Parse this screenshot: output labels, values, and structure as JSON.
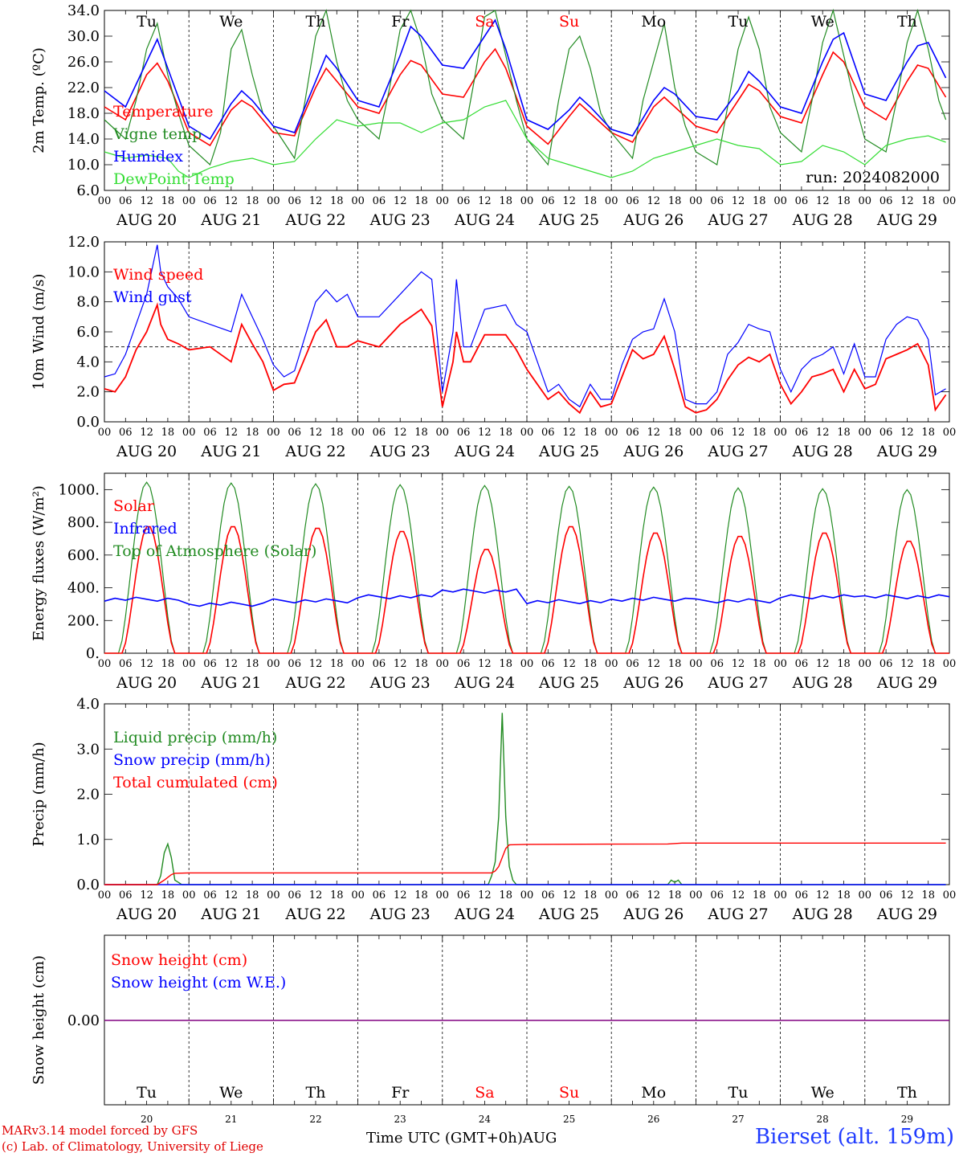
{
  "run_label": "run: 2024082000",
  "axis": {
    "hour_labels": [
      "00",
      "06",
      "12",
      "18"
    ],
    "end_hour_label": "00",
    "date_labels": [
      "AUG 20",
      "AUG 21",
      "AUG 22",
      "AUG 23",
      "AUG 24",
      "AUG 25",
      "AUG 26",
      "AUG 27",
      "AUG 28",
      "AUG 29"
    ],
    "weekdays": [
      {
        "label": "Tu",
        "color": "#000000"
      },
      {
        "label": "We",
        "color": "#000000"
      },
      {
        "label": "Th",
        "color": "#000000"
      },
      {
        "label": "Fr",
        "color": "#000000"
      },
      {
        "label": "Sa",
        "color": "#ff0000"
      },
      {
        "label": "Su",
        "color": "#ff0000"
      },
      {
        "label": "Mo",
        "color": "#000000"
      },
      {
        "label": "Tu",
        "color": "#000000"
      },
      {
        "label": "We",
        "color": "#000000"
      },
      {
        "label": "Th",
        "color": "#000000"
      }
    ],
    "day_numbers": [
      "20",
      "21",
      "22",
      "23",
      "24",
      "25",
      "26",
      "27",
      "28",
      "29"
    ]
  },
  "footer": {
    "model_line": "MARv3.14 model forced by GFS",
    "lab_line": "(c) Lab. of Climatology, University of Liege",
    "time_label": "Time UTC (GMT+0h)",
    "month_label": "AUG",
    "station": "Bierset (alt. 159m)"
  },
  "colors": {
    "red": "#ff0000",
    "green": "#228b22",
    "blue": "#0000ff",
    "lightgreen": "#33dd33",
    "purple": "#800080"
  },
  "chart_data": [
    {
      "type": "line",
      "ylabel": "2m Temp. (ºC)",
      "ylim": [
        6,
        34
      ],
      "ytick_labels": [
        "6.0",
        "10.0",
        "14.0",
        "18.0",
        "22.0",
        "26.0",
        "30.0",
        "34.0"
      ],
      "x_unit": "hours since AUG 20 00 UTC",
      "series": [
        {
          "name": "Temperature",
          "color": "#ff0000",
          "x": [
            0,
            6,
            12,
            15,
            18,
            24,
            30,
            36,
            39,
            42,
            48,
            54,
            60,
            63,
            66,
            72,
            78,
            84,
            87,
            90,
            96,
            102,
            108,
            111,
            114,
            120,
            126,
            132,
            135,
            138,
            144,
            150,
            156,
            159,
            162,
            168,
            174,
            180,
            183,
            186,
            192,
            198,
            204,
            207,
            210,
            216,
            222,
            228,
            231,
            234,
            239
          ],
          "y": [
            19,
            17,
            24,
            25.8,
            23,
            15,
            13,
            18.5,
            20,
            19,
            15,
            14.5,
            22,
            25,
            23,
            19,
            18,
            24,
            26.2,
            25.5,
            21,
            20.5,
            26,
            28,
            25,
            16,
            13.2,
            17.5,
            19.5,
            18,
            15,
            13.5,
            19,
            20.5,
            19,
            16,
            15,
            20,
            22.5,
            21.5,
            17.5,
            16.5,
            24,
            27.5,
            26,
            19,
            17,
            23,
            25.5,
            25,
            20.5
          ]
        },
        {
          "name": "Vigne temp",
          "color": "#228b22",
          "x": [
            0,
            6,
            9,
            12,
            15,
            18,
            21,
            24,
            30,
            33,
            36,
            39,
            42,
            45,
            48,
            54,
            57,
            60,
            63,
            66,
            69,
            72,
            78,
            81,
            84,
            87,
            90,
            93,
            96,
            102,
            105,
            108,
            111,
            114,
            117,
            120,
            126,
            129,
            132,
            135,
            138,
            141,
            144,
            150,
            153,
            156,
            159,
            162,
            165,
            168,
            174,
            177,
            180,
            183,
            186,
            189,
            192,
            198,
            201,
            204,
            207,
            210,
            213,
            216,
            222,
            225,
            228,
            231,
            234,
            237,
            239
          ],
          "y": [
            17,
            14,
            20,
            28,
            32,
            24,
            18,
            13,
            10,
            15,
            28,
            31,
            24,
            18,
            16,
            11,
            20,
            30,
            34,
            26,
            20,
            17,
            14,
            22,
            31,
            34,
            29,
            21,
            17,
            14,
            23,
            33,
            34,
            27,
            20,
            14,
            10,
            20,
            28,
            30,
            25,
            18,
            15,
            11,
            20,
            26,
            32,
            22,
            16,
            12,
            10,
            19,
            28,
            33,
            28,
            19,
            15,
            12,
            20,
            29,
            34,
            27,
            20,
            14,
            12,
            20,
            29,
            34,
            28,
            20,
            17
          ]
        },
        {
          "name": "Humidex",
          "color": "#0000ff",
          "x": [
            0,
            6,
            12,
            15,
            18,
            24,
            30,
            36,
            39,
            42,
            48,
            54,
            60,
            63,
            66,
            72,
            78,
            84,
            87,
            90,
            96,
            102,
            108,
            111,
            114,
            120,
            126,
            132,
            135,
            138,
            144,
            150,
            156,
            159,
            162,
            168,
            174,
            180,
            183,
            186,
            192,
            198,
            204,
            207,
            210,
            216,
            222,
            228,
            231,
            234,
            239
          ],
          "y": [
            21.5,
            19,
            26,
            29.5,
            25,
            16,
            14,
            19.5,
            21.5,
            20,
            16,
            15,
            23,
            27,
            25,
            20,
            19,
            27,
            31.5,
            30,
            25.5,
            25,
            30,
            32.5,
            28,
            17,
            15.5,
            18.5,
            20.5,
            19,
            15.5,
            14.5,
            20,
            22,
            21,
            17.5,
            17,
            21.5,
            24.5,
            23,
            19,
            18,
            26,
            29.5,
            30.5,
            21,
            20,
            26,
            28.5,
            29,
            23.5
          ]
        },
        {
          "name": "DewPoint Temp",
          "color": "#33dd33",
          "x": [
            0,
            6,
            12,
            18,
            21,
            24,
            30,
            36,
            42,
            48,
            54,
            60,
            66,
            72,
            78,
            84,
            90,
            96,
            102,
            108,
            114,
            117,
            120,
            126,
            132,
            138,
            144,
            150,
            156,
            162,
            168,
            174,
            180,
            186,
            192,
            198,
            204,
            210,
            216,
            222,
            228,
            234,
            239
          ],
          "y": [
            12,
            11,
            11.5,
            11,
            9,
            8,
            9.5,
            10.5,
            11,
            10,
            10.5,
            14,
            17,
            16,
            16.5,
            16.5,
            15,
            16.5,
            17,
            19,
            20,
            17,
            14,
            11,
            10,
            9,
            8,
            9,
            11,
            12,
            13,
            14,
            13,
            12.5,
            10,
            10.5,
            13,
            12,
            10,
            13,
            14,
            14.5,
            13.5
          ]
        }
      ]
    },
    {
      "type": "line",
      "ylabel": "10m Wind (m/s)",
      "ylim": [
        0,
        12
      ],
      "ytick_labels": [
        "0.0",
        "2.0",
        "4.0",
        "6.0",
        "8.0",
        "10.0",
        "12.0"
      ],
      "reference_line": 5,
      "series": [
        {
          "name": "Wind speed",
          "color": "#ff0000",
          "x": [
            0,
            3,
            6,
            9,
            12,
            15,
            16,
            18,
            21,
            24,
            30,
            36,
            39,
            42,
            45,
            48,
            51,
            54,
            60,
            63,
            66,
            69,
            72,
            78,
            84,
            90,
            93,
            96,
            99,
            100,
            102,
            104,
            108,
            114,
            117,
            120,
            123,
            126,
            129,
            132,
            135,
            138,
            141,
            144,
            147,
            150,
            153,
            156,
            159,
            162,
            165,
            168,
            171,
            174,
            177,
            180,
            183,
            186,
            189,
            192,
            195,
            198,
            201,
            204,
            207,
            210,
            213,
            216,
            219,
            222,
            225,
            228,
            231,
            234,
            236,
            239
          ],
          "y": [
            2.2,
            2,
            3,
            4.8,
            6,
            7.8,
            6.5,
            5.5,
            5.2,
            4.8,
            5,
            4,
            6.5,
            5.2,
            4,
            2.1,
            2.5,
            2.6,
            6,
            6.8,
            5,
            5,
            5.4,
            5,
            6.5,
            7.5,
            6.4,
            1,
            4,
            6,
            4,
            4,
            5.8,
            5.8,
            4.8,
            3.5,
            2.5,
            1.5,
            2,
            1.2,
            0.6,
            2,
            1,
            1.2,
            3,
            4.8,
            4.2,
            4.5,
            5.7,
            3.5,
            1,
            0.6,
            0.8,
            1.5,
            2.8,
            3.8,
            4.3,
            4,
            4.5,
            2.5,
            1.2,
            2,
            3,
            3.2,
            3.5,
            2,
            3.5,
            2.2,
            2.5,
            4.2,
            4.5,
            4.8,
            5.2,
            3.8,
            0.8,
            1.8
          ]
        },
        {
          "name": "Wind gust",
          "color": "#0000ff",
          "x": [
            0,
            3,
            6,
            9,
            12,
            15,
            16,
            18,
            21,
            24,
            30,
            36,
            39,
            42,
            45,
            48,
            51,
            54,
            60,
            63,
            66,
            69,
            72,
            78,
            84,
            90,
            93,
            96,
            99,
            100,
            102,
            104,
            108,
            114,
            117,
            120,
            123,
            126,
            129,
            132,
            135,
            138,
            141,
            144,
            147,
            150,
            153,
            156,
            159,
            162,
            165,
            168,
            171,
            174,
            177,
            180,
            183,
            186,
            189,
            192,
            195,
            198,
            201,
            204,
            207,
            210,
            213,
            216,
            219,
            222,
            225,
            228,
            231,
            234,
            236,
            239
          ],
          "y": [
            3,
            3.2,
            4.5,
            6.5,
            8.5,
            11.8,
            10,
            9,
            8.2,
            7,
            6.5,
            6,
            8.5,
            7,
            5.5,
            3.8,
            3,
            3.4,
            8,
            8.8,
            8,
            8.5,
            7,
            7,
            8.5,
            10,
            9.5,
            2,
            6,
            9.5,
            5,
            5,
            7.5,
            7.8,
            6.5,
            6,
            4,
            2,
            2.5,
            1.5,
            1,
            2.5,
            1.5,
            1.5,
            3.8,
            5.5,
            6,
            6.2,
            8.2,
            6,
            1.5,
            1.2,
            1.2,
            2,
            4.5,
            5.3,
            6.5,
            6.2,
            6,
            3.5,
            2,
            3.5,
            4.2,
            4.5,
            5,
            3.2,
            5.2,
            3,
            3,
            5.5,
            6.5,
            7,
            6.8,
            5.5,
            1.8,
            2.2
          ]
        }
      ]
    },
    {
      "type": "line",
      "ylabel": "Energy fluxes (W/m²)",
      "ylim": [
        0,
        1100
      ],
      "ytick_labels": [
        "0.",
        "200.",
        "400.",
        "600.",
        "800.",
        "1000."
      ],
      "series": [
        {
          "name": "Solar",
          "color": "#ff0000",
          "daily_peaks": [
            780,
            780,
            770,
            750,
            640,
            780,
            740,
            720,
            740,
            690
          ],
          "sunrise_hour": 5,
          "sunset_hour": 20,
          "peak_hour": 12
        },
        {
          "name": "Infrared",
          "color": "#0000ff",
          "daily_values": [
            330,
            300,
            320,
            345,
            380,
            315,
            330,
            320,
            345,
            345
          ]
        },
        {
          "name": "Top of Atmosphere (Solar)",
          "color": "#228b22",
          "daily_peaks": [
            1045,
            1040,
            1035,
            1030,
            1025,
            1020,
            1015,
            1010,
            1005,
            1000
          ],
          "sunrise_hour": 4,
          "sunset_hour": 20,
          "peak_hour": 12
        }
      ]
    },
    {
      "type": "line",
      "ylabel": "Precip (mm/h)",
      "ylim": [
        0,
        4
      ],
      "ytick_labels": [
        "0.0",
        "1.0",
        "2.0",
        "3.0",
        "4.0"
      ],
      "series": [
        {
          "name": "Liquid precip (mm/h)",
          "color": "#228b22",
          "x": [
            0,
            15,
            16,
            17,
            18,
            19,
            20,
            21,
            22,
            24,
            109,
            110,
            111,
            112,
            113,
            114,
            115,
            116,
            117,
            118,
            119,
            120,
            160,
            161,
            162,
            163,
            164,
            239
          ],
          "y": [
            0,
            0,
            0.2,
            0.7,
            0.9,
            0.6,
            0.1,
            0.05,
            0,
            0,
            0,
            0.2,
            0.5,
            1.5,
            3.8,
            1.5,
            0.4,
            0.1,
            0,
            0,
            0,
            0,
            0,
            0.1,
            0.05,
            0.1,
            0,
            0
          ]
        },
        {
          "name": "Snow precip (mm/h)",
          "color": "#0000ff",
          "x": [
            0,
            239
          ],
          "y": [
            0,
            0
          ]
        },
        {
          "name": "Total cumulated (cm)",
          "color": "#ff0000",
          "x": [
            0,
            15,
            17,
            19,
            20,
            24,
            110,
            111,
            112,
            113,
            114,
            115,
            120,
            160,
            164,
            239
          ],
          "y": [
            0,
            0,
            0.1,
            0.22,
            0.25,
            0.26,
            0.26,
            0.3,
            0.4,
            0.6,
            0.8,
            0.88,
            0.89,
            0.9,
            0.92,
            0.92
          ]
        }
      ]
    },
    {
      "type": "line",
      "ylabel": "Snow height (cm)",
      "ytick_labels": [
        "0.00"
      ],
      "series": [
        {
          "name": "Snow height (cm)",
          "color": "#ff0000",
          "x": [
            0,
            239
          ],
          "y": [
            0,
            0
          ]
        },
        {
          "name": "Snow height (cm W.E.)",
          "color": "#0000ff",
          "x": [
            0,
            239
          ],
          "y": [
            0,
            0
          ]
        }
      ]
    }
  ]
}
